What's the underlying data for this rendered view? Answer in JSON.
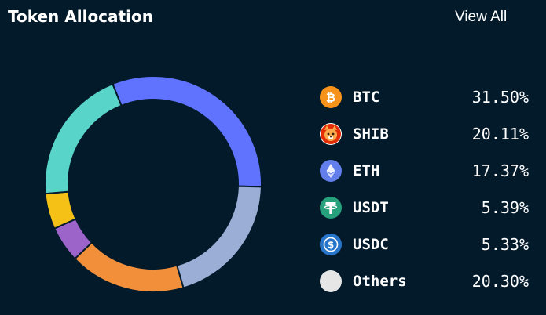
{
  "header": {
    "title": "Token Allocation",
    "view_all_label": "View All"
  },
  "chart_data": {
    "type": "pie",
    "categories": [
      "BTC",
      "SHIB",
      "ETH",
      "USDT",
      "USDC",
      "Others"
    ],
    "values": [
      31.5,
      20.11,
      17.37,
      5.39,
      5.33,
      20.3
    ],
    "colors": [
      "#5f73ff",
      "#9aaed6",
      "#f28f3b",
      "#9c63c8",
      "#f5c117",
      "#59d4c8"
    ]
  },
  "legend": [
    {
      "name": "BTC",
      "percent": "31.50%",
      "icon": "bitcoin-icon",
      "icon_color": "#f7931a"
    },
    {
      "name": "SHIB",
      "percent": "20.11%",
      "icon": "shiba-icon",
      "icon_color": "#e42d04"
    },
    {
      "name": "ETH",
      "percent": "17.37%",
      "icon": "ethereum-icon",
      "icon_color": "#627eea"
    },
    {
      "name": "USDT",
      "percent": "5.39%",
      "icon": "tether-icon",
      "icon_color": "#26a17b"
    },
    {
      "name": "USDC",
      "percent": "5.33%",
      "icon": "usdc-icon",
      "icon_color": "#2775ca"
    },
    {
      "name": "Others",
      "percent": "20.30%",
      "icon": "others-icon",
      "icon_color": "#e6e6e6"
    }
  ]
}
